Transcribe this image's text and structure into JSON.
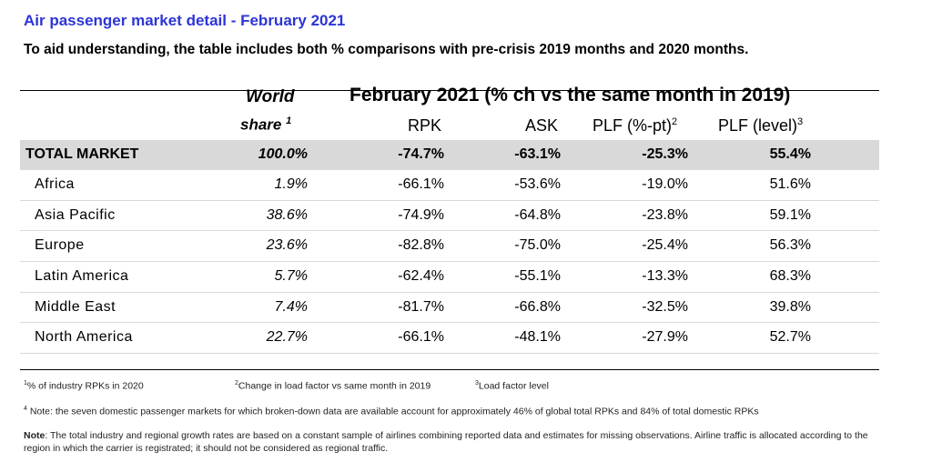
{
  "title": "Air passenger market detail - February 2021",
  "subtitle": "To aid understanding, the table includes both % comparisons with pre-crisis 2019 months and 2020 months.",
  "header": {
    "world": "World",
    "share": "share",
    "share_sup": "1",
    "group": "February 2021 (% ch vs the same month in 2019)",
    "rpk": "RPK",
    "ask": "ASK",
    "plf_pt": "PLF (%-pt)",
    "plf_pt_sup": "2",
    "plf_level": "PLF (level)",
    "plf_level_sup": "3"
  },
  "rows": [
    {
      "region": "TOTAL MARKET",
      "share": "100.0%",
      "rpk": "-74.7%",
      "ask": "-63.1%",
      "plf_pt": "-25.3%",
      "plf_level": "55.4%"
    },
    {
      "region": "Africa",
      "share": "1.9%",
      "rpk": "-66.1%",
      "ask": "-53.6%",
      "plf_pt": "-19.0%",
      "plf_level": "51.6%"
    },
    {
      "region": "Asia Pacific",
      "share": "38.6%",
      "rpk": "-74.9%",
      "ask": "-64.8%",
      "plf_pt": "-23.8%",
      "plf_level": "59.1%"
    },
    {
      "region": "Europe",
      "share": "23.6%",
      "rpk": "-82.8%",
      "ask": "-75.0%",
      "plf_pt": "-25.4%",
      "plf_level": "56.3%"
    },
    {
      "region": "Latin America",
      "share": "5.7%",
      "rpk": "-62.4%",
      "ask": "-55.1%",
      "plf_pt": "-13.3%",
      "plf_level": "68.3%"
    },
    {
      "region": "Middle East",
      "share": "7.4%",
      "rpk": "-81.7%",
      "ask": "-66.8%",
      "plf_pt": "-32.5%",
      "plf_level": "39.8%"
    },
    {
      "region": "North America",
      "share": "22.7%",
      "rpk": "-66.1%",
      "ask": "-48.1%",
      "plf_pt": "-27.9%",
      "plf_level": "52.7%"
    }
  ],
  "footnotes": {
    "f1_sup": "1",
    "f1": "% of industry RPKs in 2020",
    "f2_sup": "2",
    "f2": "Change in load factor vs same month in 2019",
    "f3_sup": "3",
    "f3": "Load factor level",
    "f4_sup": "4",
    "f4": " Note: the seven domestic passenger markets for which broken-down data are available account for approximately 46% of global total RPKs and 84% of total domestic RPKs",
    "f5_label": "Note",
    "f5": ": The total industry and regional growth rates are based on a constant sample of airlines combining reported data and estimates for missing observations. Airline traffic is allocated according to the region in which the carrier is registrated; it should not be considered as regional traffic."
  }
}
